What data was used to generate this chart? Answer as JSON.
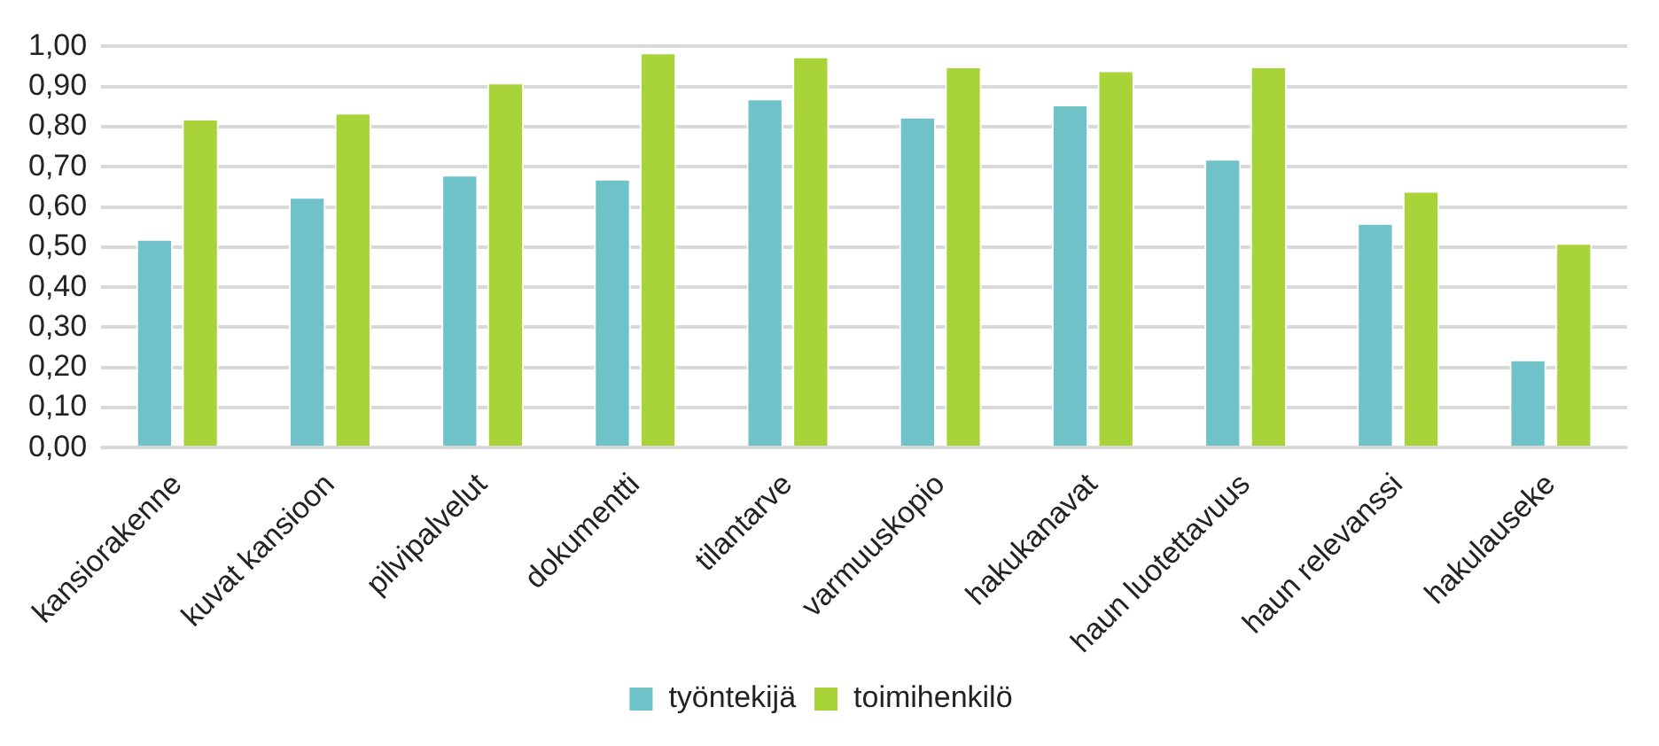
{
  "chart_data": {
    "type": "bar",
    "categories": [
      "kansiorakenne",
      "kuvat kansioon",
      "pilvipalvelut",
      "dokumentti",
      "tilantarve",
      "varmuuskopio",
      "hakukanavat",
      "haun luotettavuus",
      "haun relevanssi",
      "hakulauseke"
    ],
    "series": [
      {
        "name": "työntekijä",
        "color": "#6fc3c8",
        "values": [
          0.52,
          0.625,
          0.68,
          0.67,
          0.87,
          0.825,
          0.855,
          0.72,
          0.56,
          0.22
        ]
      },
      {
        "name": "toimihenkilö",
        "color": "#a8d43a",
        "values": [
          0.82,
          0.835,
          0.91,
          0.985,
          0.975,
          0.95,
          0.94,
          0.95,
          0.64,
          0.51
        ]
      }
    ],
    "ylim": [
      0,
      1
    ],
    "yticks": [
      {
        "value": 0,
        "label": "0,00"
      },
      {
        "value": 0.1,
        "label": "0,10"
      },
      {
        "value": 0.2,
        "label": "0,20"
      },
      {
        "value": 0.3,
        "label": "0,30"
      },
      {
        "value": 0.4,
        "label": "0,40"
      },
      {
        "value": 0.5,
        "label": "0,50"
      },
      {
        "value": 0.6,
        "label": "0,60"
      },
      {
        "value": 0.7,
        "label": "0,70"
      },
      {
        "value": 0.8,
        "label": "0,80"
      },
      {
        "value": 0.9,
        "label": "0,90"
      },
      {
        "value": 1,
        "label": "1,00"
      }
    ],
    "grid": "y",
    "legend": "bottom"
  }
}
